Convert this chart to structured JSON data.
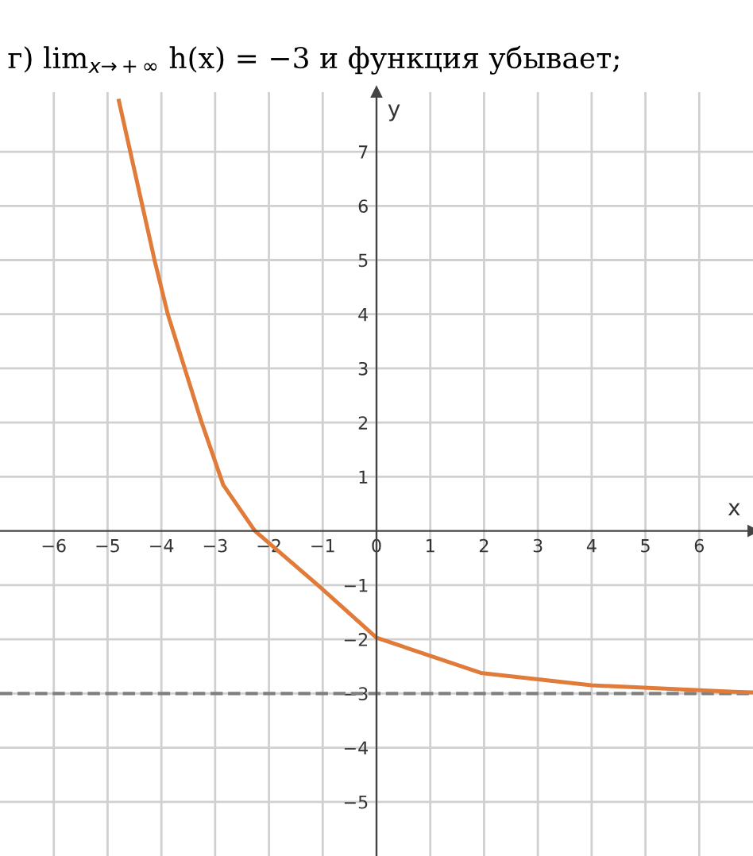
{
  "chart_data": {
    "type": "line",
    "title": "г) lim$_{x→+∞}$ h(x) = −3 и функция убывает;",
    "xlabel": "x",
    "ylabel": "y",
    "x": [
      -4.79,
      -4.12,
      -3.88,
      -3.26,
      -2.85,
      -2.26,
      -1.09,
      0,
      1.94,
      4,
      6.65,
      7
    ],
    "series": [
      {
        "color": "#e07b39",
        "values": [
          7.94,
          4.97,
          4.0,
          2.03,
          0.85,
          0,
          -1.0,
          -1.97,
          -2.62,
          -2.85,
          -2.97,
          -2.98
        ]
      }
    ],
    "xlim": [
      -7,
      7
    ],
    "ylim": [
      -6,
      8.1
    ],
    "xticks": [
      -6,
      -5,
      -4,
      -3,
      -2,
      -1,
      0,
      1,
      2,
      3,
      4,
      5,
      6
    ],
    "yticks": [
      -5,
      -4,
      -3,
      -2,
      -1,
      1,
      2,
      3,
      4,
      5,
      6,
      7
    ],
    "grid": true,
    "marker": "none",
    "line_style": "solid",
    "ref_lines": [
      {
        "axis": "y",
        "value": -3,
        "color": "#808080",
        "line_style": "dashed"
      }
    ]
  }
}
